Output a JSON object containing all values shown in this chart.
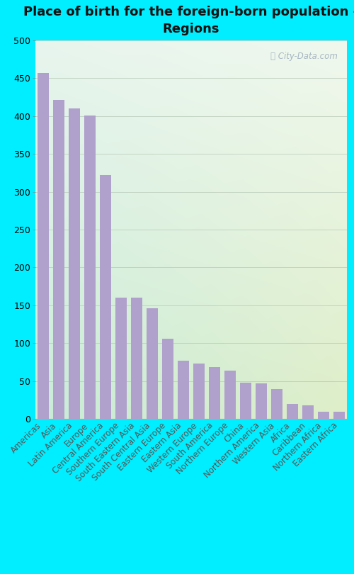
{
  "title": "Place of birth for the foreign-born population -\nRegions",
  "categories": [
    "Americas",
    "Asia",
    "Latin America",
    "Europe",
    "Central America",
    "Southern Europe",
    "South Eastern Asia",
    "South Central Asia",
    "Eastern Europe",
    "Eastern Asia",
    "Western Europe",
    "South America",
    "Northern Europe",
    "China",
    "Northern America",
    "Western Asia",
    "Africa",
    "Caribbean",
    "Northern Africa",
    "Eastern Africa"
  ],
  "values": [
    457,
    421,
    410,
    401,
    322,
    160,
    160,
    146,
    106,
    77,
    73,
    69,
    64,
    48,
    47,
    40,
    20,
    18,
    10,
    10
  ],
  "bar_color": "#b0a0cc",
  "fig_bg_color": "#00eeff",
  "ylim": [
    0,
    500
  ],
  "yticks": [
    0,
    50,
    100,
    150,
    200,
    250,
    300,
    350,
    400,
    450,
    500
  ],
  "grid_color": "#bbccbb",
  "title_fontsize": 13,
  "tick_fontsize": 8.5,
  "watermark": "City-Data.com",
  "watermark_color": "#99aabb",
  "title_color": "#111111"
}
